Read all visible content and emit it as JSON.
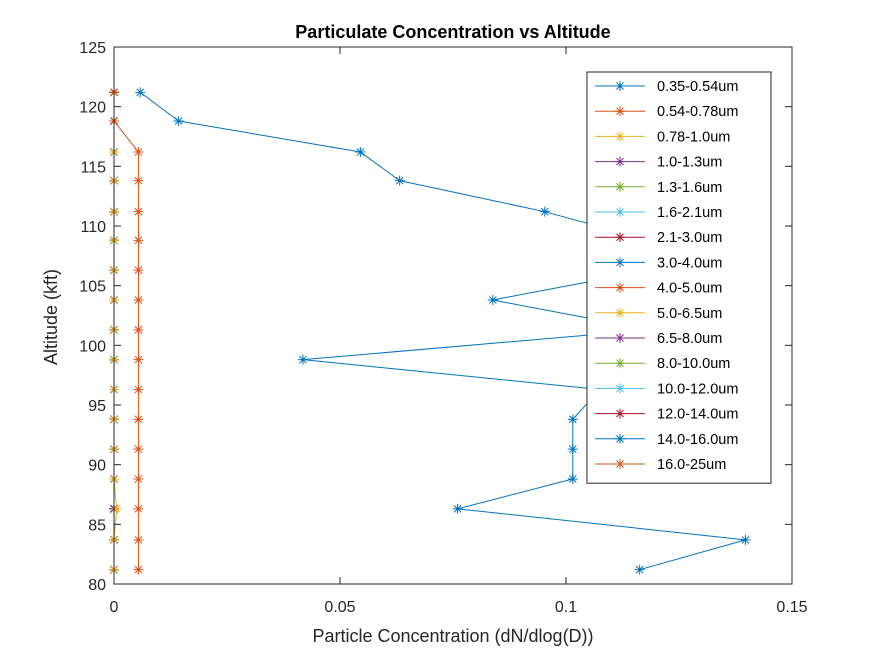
{
  "chart_data": {
    "type": "line",
    "title": "Particulate Concentration vs Altitude",
    "xlabel": "Particle Concentration (dN/dlog(D))",
    "ylabel": "Altitude (kft)",
    "xlim": [
      0,
      0.15
    ],
    "ylim": [
      80,
      125
    ],
    "xticks": [
      0,
      0.05,
      0.1,
      0.15
    ],
    "xtick_labels": [
      "0",
      "0.05",
      "0.1",
      "0.15"
    ],
    "yticks": [
      80,
      85,
      90,
      95,
      100,
      105,
      110,
      115,
      120,
      125
    ],
    "ytick_labels": [
      "80",
      "85",
      "90",
      "95",
      "100",
      "105",
      "110",
      "115",
      "120",
      "125"
    ],
    "grid": false,
    "legend_position": "top-right",
    "marker": "asterisk",
    "altitudes": [
      81.2,
      83.7,
      86.3,
      88.8,
      91.3,
      93.8,
      96.3,
      98.8,
      101.3,
      103.8,
      106.3,
      108.8,
      111.2,
      113.8,
      116.2,
      118.8,
      121.2
    ],
    "series": [
      {
        "name": "0.35-0.54um",
        "color": "#0072BD",
        "x": [
          0.1163,
          0.1397,
          0.076,
          0.1015,
          0.1015,
          0.1015,
          0.1075,
          0.0418,
          0.1185,
          0.0838,
          0.1185,
          0.1185,
          0.0953,
          0.0632,
          0.0545,
          0.0143,
          0.0058
        ]
      },
      {
        "name": "0.54-0.78um",
        "color": "#D95319",
        "x": [
          0.0054,
          0.0054,
          0.0054,
          0.0054,
          0.0054,
          0.0054,
          0.0054,
          0.0054,
          0.0054,
          0.0054,
          0.0054,
          0.0054,
          0.0054,
          0.0054,
          0.0054,
          0.0,
          0.0
        ]
      },
      {
        "name": "0.78-1.0um",
        "color": "#EDB120",
        "x": [
          0,
          0,
          0.0006,
          0,
          0,
          0,
          0,
          0,
          0,
          0,
          0,
          0,
          0,
          0,
          0,
          0,
          0
        ]
      },
      {
        "name": "1.0-1.3um",
        "color": "#7E2F8E",
        "x": [
          0,
          0,
          0,
          0,
          0,
          0,
          0,
          0,
          0,
          0,
          0,
          0,
          0,
          0,
          0,
          0,
          0
        ]
      },
      {
        "name": "1.3-1.6um",
        "color": "#77AC30",
        "x": [
          0,
          0,
          0,
          0,
          0,
          0,
          0,
          0,
          0,
          0,
          0,
          0,
          0,
          0,
          0,
          0,
          0
        ]
      },
      {
        "name": "1.6-2.1um",
        "color": "#4DBEEE",
        "x": [
          0,
          0,
          0,
          0,
          0,
          0,
          0,
          0,
          0,
          0,
          0,
          0,
          0,
          0,
          0,
          0,
          0
        ]
      },
      {
        "name": "2.1-3.0um",
        "color": "#A2142F",
        "x": [
          0,
          0,
          0,
          0,
          0,
          0,
          0,
          0,
          0,
          0,
          0,
          0,
          0,
          0,
          0,
          0,
          0
        ]
      },
      {
        "name": "3.0-4.0um",
        "color": "#0072BD",
        "x": [
          0,
          0,
          0,
          0,
          0,
          0,
          0,
          0,
          0,
          0,
          0,
          0,
          0,
          0,
          0,
          0,
          0
        ]
      },
      {
        "name": "4.0-5.0um",
        "color": "#D95319",
        "x": [
          0,
          0,
          0,
          0,
          0,
          0,
          0,
          0,
          0,
          0,
          0,
          0,
          0,
          0,
          0,
          0,
          0
        ]
      },
      {
        "name": "5.0-6.5um",
        "color": "#EDB120",
        "x": [
          0,
          0,
          0,
          0,
          0,
          0,
          0,
          0,
          0,
          0,
          0,
          0,
          0,
          0,
          0,
          0,
          0
        ]
      },
      {
        "name": "6.5-8.0um",
        "color": "#7E2F8E",
        "x": [
          0,
          0,
          0,
          0,
          0,
          0,
          0,
          0,
          0,
          0,
          0,
          0,
          0,
          0,
          0,
          0,
          0
        ]
      },
      {
        "name": "8.0-10.0um",
        "color": "#77AC30",
        "x": [
          0,
          0,
          0,
          0,
          0,
          0,
          0,
          0,
          0,
          0,
          0,
          0,
          0,
          0,
          0,
          0,
          0
        ]
      },
      {
        "name": "10.0-12.0um",
        "color": "#4DBEEE",
        "x": [
          0,
          0,
          0,
          0,
          0,
          0,
          0,
          0,
          0,
          0,
          0,
          0,
          0,
          0,
          0,
          0,
          0
        ]
      },
      {
        "name": "12.0-14.0um",
        "color": "#A2142F",
        "x": [
          0,
          0,
          0,
          0,
          0,
          0,
          0,
          0,
          0,
          0,
          0,
          0,
          0,
          0,
          0,
          0,
          0
        ]
      },
      {
        "name": "14.0-16.0um",
        "color": "#0072BD",
        "x": [
          0,
          0,
          0,
          0,
          0,
          0,
          0,
          0,
          0,
          0,
          0,
          0,
          0,
          0,
          0,
          0,
          0
        ]
      },
      {
        "name": "16.0-25um",
        "color": "#D95319",
        "x": [
          0,
          0,
          0,
          0,
          0,
          0,
          0,
          0,
          0,
          0,
          0,
          0,
          0,
          0,
          0,
          0,
          0
        ]
      }
    ]
  }
}
